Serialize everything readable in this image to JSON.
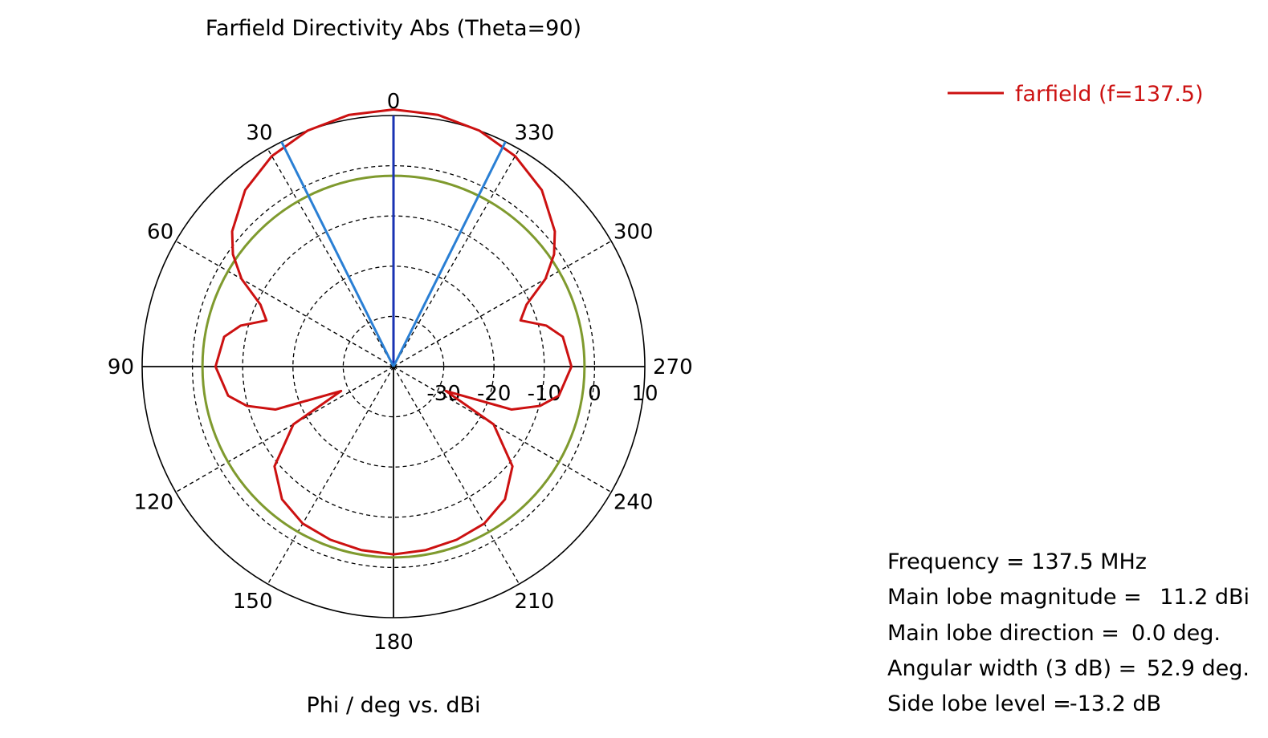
{
  "chart_data": {
    "type": "polar-line",
    "title": "Farfield Directivity Abs (Theta=90)",
    "axis_label": "Phi / deg vs. dBi",
    "angle_ticks": [
      0,
      30,
      60,
      90,
      120,
      150,
      180,
      210,
      240,
      270,
      300,
      330
    ],
    "angle_direction": "counterclockwise-left",
    "radial_ticks": [
      -30,
      -20,
      -10,
      0,
      10
    ],
    "radial_range": [
      -40,
      10
    ],
    "grid": true,
    "legend_position": "top-right",
    "series": [
      {
        "name": "farfield (f=137.5)",
        "color": "#cc1111",
        "phi": [
          0,
          10,
          20,
          30,
          40,
          50,
          55,
          60,
          65,
          70,
          75,
          80,
          90,
          100,
          105,
          110,
          115,
          120,
          130,
          140,
          150,
          160,
          170,
          180,
          190,
          200,
          210,
          220,
          230,
          240,
          245,
          250,
          255,
          260,
          270,
          280,
          285,
          290,
          295,
          300,
          305,
          310,
          320,
          330,
          340,
          350,
          360
        ],
        "dbi": [
          11.2,
          10.9,
          10.0,
          8.4,
          5.9,
          1.9,
          -1.0,
          -5.1,
          -10.8,
          -13.1,
          -8.5,
          -5.8,
          -4.6,
          -6.6,
          -9.8,
          -15.0,
          -28.5,
          -17.0,
          -9.1,
          -5.5,
          -3.9,
          -3.3,
          -2.9,
          -2.6,
          -2.9,
          -3.3,
          -3.9,
          -5.5,
          -9.1,
          -17.0,
          -28.5,
          -15.0,
          -9.8,
          -6.6,
          -4.6,
          -5.8,
          -8.5,
          -13.1,
          -10.8,
          -5.1,
          -1.0,
          1.9,
          5.9,
          8.4,
          10.0,
          10.9,
          11.2
        ]
      }
    ],
    "markers": [
      {
        "name": "main-lobe-direction",
        "phi": 0,
        "color": "#1a33b3"
      },
      {
        "name": "3db-beamwidth-left",
        "phi": 26.45,
        "color": "#2a7fd4"
      },
      {
        "name": "3db-beamwidth-right",
        "phi": 333.55,
        "color": "#2a7fd4"
      }
    ],
    "reference_circle": {
      "dbi": -2.0,
      "color": "#7f9a2e"
    }
  },
  "legend": {
    "entry": "farfield (f=137.5)",
    "color": "#cc1111"
  },
  "info": {
    "frequency_label": "Frequency = 137.5 MHz",
    "main_lobe_magnitude_label": "Main lobe magnitude =",
    "main_lobe_magnitude_value": "11.2 dBi",
    "main_lobe_direction_label": "Main lobe direction =",
    "main_lobe_direction_value": "0.0 deg.",
    "angular_width_label": "Angular width (3 dB) =",
    "angular_width_value": "52.9 deg.",
    "side_lobe_level_label": "Side lobe level =",
    "side_lobe_level_value": "-13.2 dB"
  }
}
